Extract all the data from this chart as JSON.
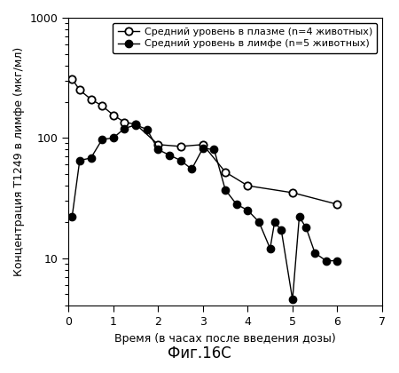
{
  "plasma_x": [
    0.08,
    0.25,
    0.5,
    0.75,
    1.0,
    1.25,
    1.5,
    2.0,
    2.5,
    3.0,
    3.5,
    4.0,
    5.0,
    6.0
  ],
  "plasma_y": [
    310,
    250,
    210,
    185,
    155,
    135,
    130,
    88,
    85,
    88,
    52,
    40,
    35,
    28
  ],
  "lymph_x": [
    0.08,
    0.25,
    0.5,
    0.75,
    1.0,
    1.25,
    1.5,
    1.75,
    2.0,
    2.25,
    2.5,
    2.75,
    3.0,
    3.25,
    3.5,
    3.75,
    4.0,
    4.25,
    4.5,
    4.6,
    4.75,
    5.0,
    5.15,
    5.3,
    5.5,
    5.75,
    6.0
  ],
  "lymph_y": [
    22,
    65,
    68,
    97,
    100,
    120,
    128,
    118,
    80,
    72,
    65,
    55,
    82,
    80,
    37,
    28,
    25,
    20,
    12,
    20,
    17,
    4.5,
    22,
    18,
    11,
    9.5,
    9.5
  ],
  "xlabel": "Время (в часах после введения дозы)",
  "ylabel": "Концентрация T1249 в лимфе (мкг/мл)",
  "legend_plasma": "Средний уровень в плазме (n=4 животных)",
  "legend_lymph": "Средний уровень в лимфе (n=5 животных)",
  "caption": "Фиг.16C",
  "xlim": [
    0,
    7
  ],
  "ylim_log": [
    4,
    1000
  ],
  "xticks": [
    0,
    1,
    2,
    3,
    4,
    5,
    6,
    7
  ],
  "yticks_major": [
    10,
    100,
    1000
  ],
  "line_color": "#000000",
  "bg_color": "#ffffff",
  "fontsize_labels": 9,
  "fontsize_ticks": 9,
  "fontsize_legend": 8,
  "fontsize_caption": 12
}
